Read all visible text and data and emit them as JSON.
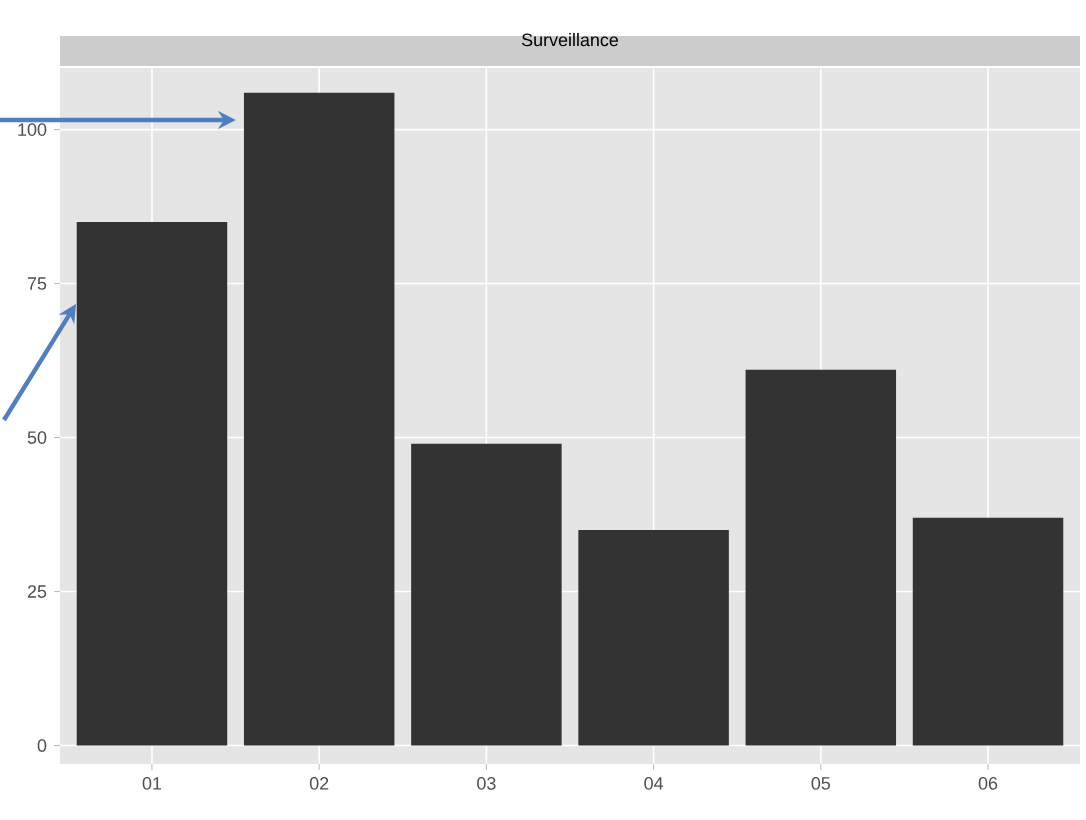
{
  "chart_data": {
    "type": "bar",
    "title": "Surveillance",
    "categories": [
      "01",
      "02",
      "03",
      "04",
      "05",
      "06"
    ],
    "values": [
      85,
      106,
      49,
      35,
      61,
      37
    ],
    "color": "#333333",
    "ylim": [
      -3,
      110
    ],
    "yticks": [
      0,
      25,
      50,
      75,
      100
    ],
    "grid": true
  }
}
